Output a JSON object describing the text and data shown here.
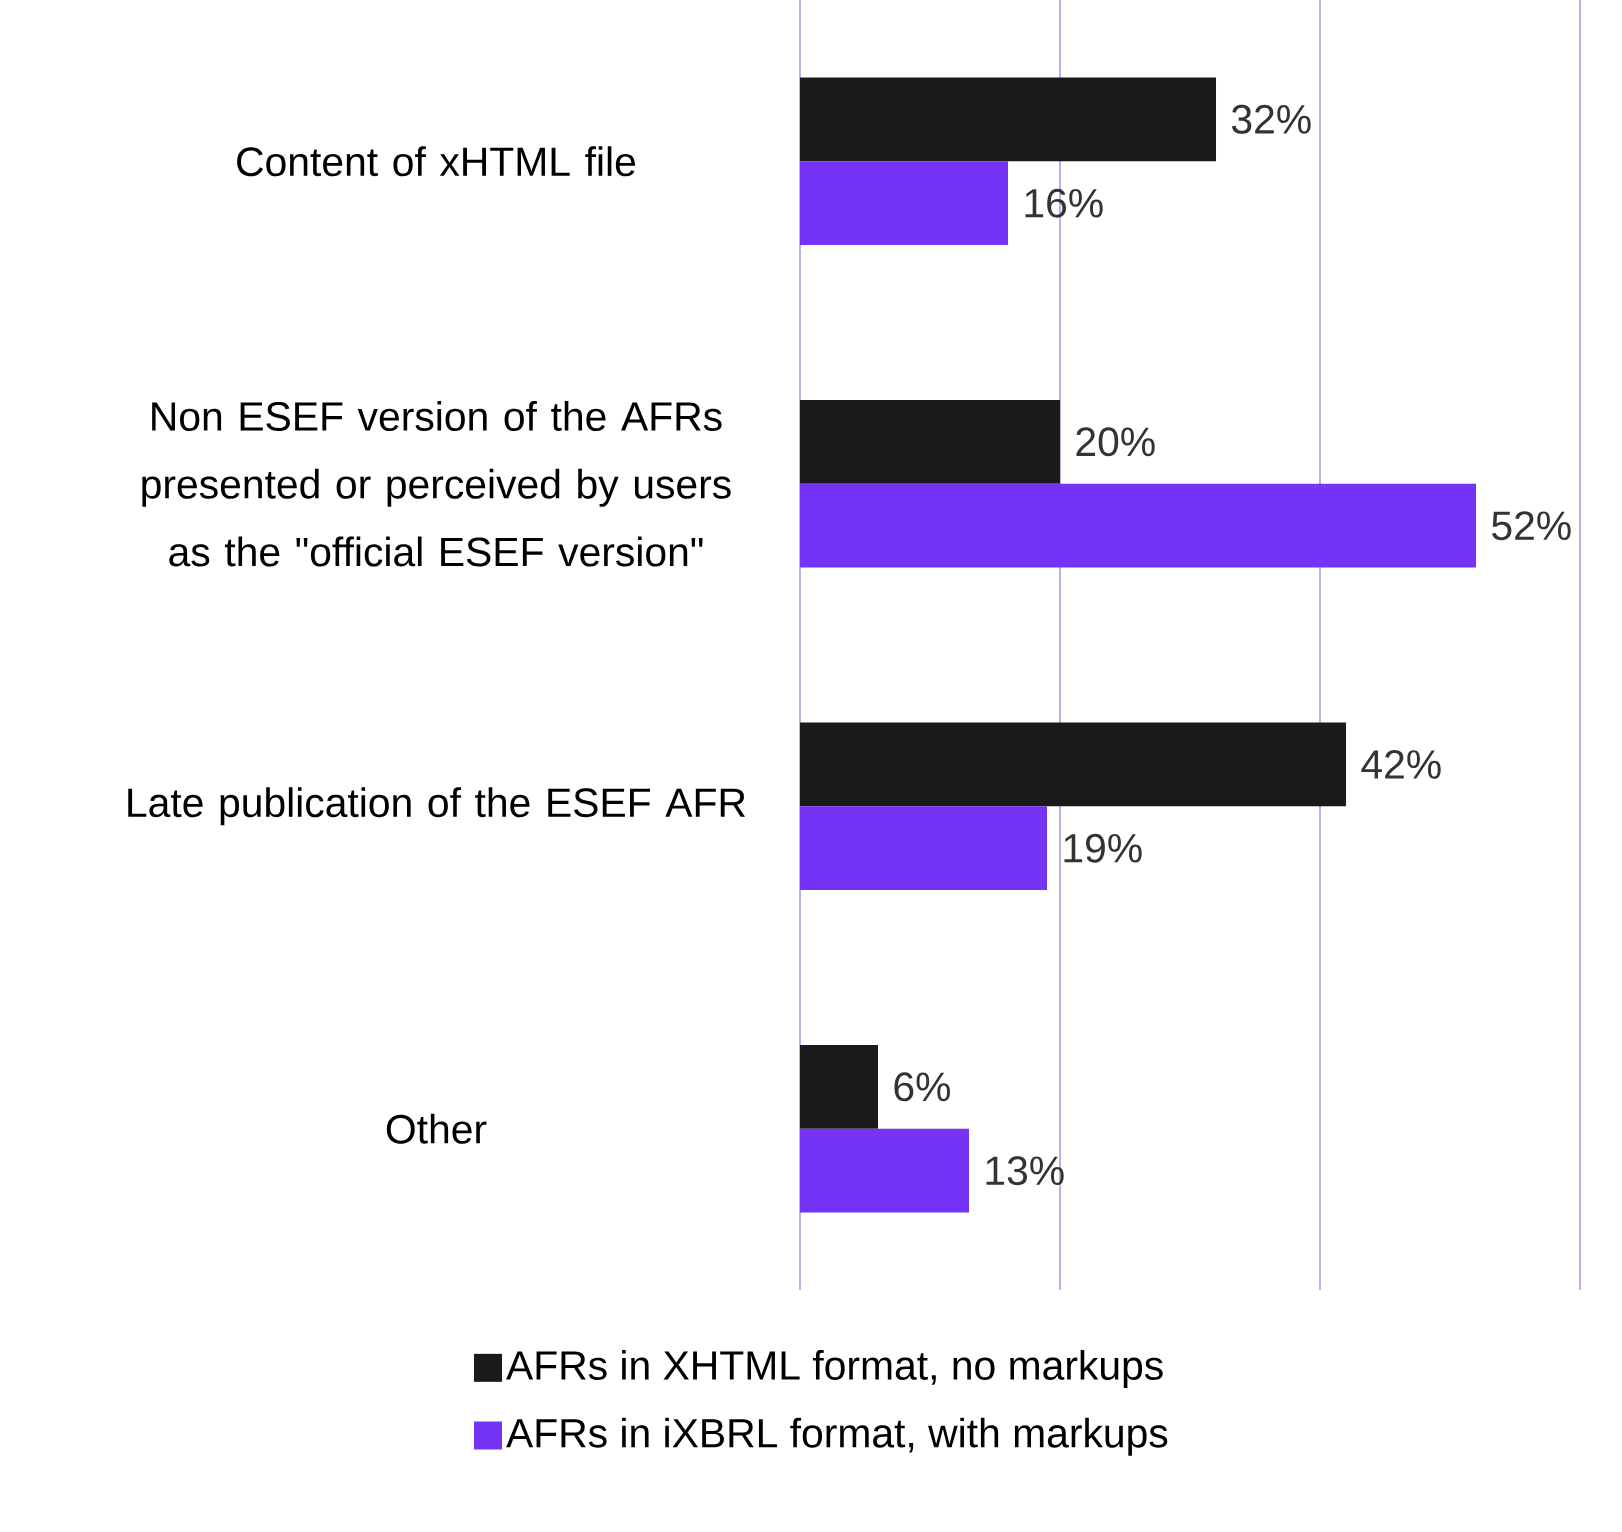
{
  "chart_data": {
    "type": "bar",
    "orientation": "horizontal",
    "categories": [
      "Content of xHTML file",
      "Non ESEF version of the AFRs presented or perceived by users as the \"official ESEF version\"",
      "Late publication of the ESEF AFR",
      "Other"
    ],
    "series": [
      {
        "name": "AFRs in XHTML format, no markups",
        "color": "#1a1a1a",
        "values": [
          32,
          20,
          42,
          6
        ],
        "value_labels": [
          "32%",
          "20%",
          "42%",
          "6%"
        ]
      },
      {
        "name": "AFRs in iXBRL format, with markups",
        "color": "#7433f5",
        "values": [
          16,
          52,
          19,
          13
        ],
        "value_labels": [
          "16%",
          "52%",
          "19%",
          "13%"
        ]
      }
    ],
    "xlim": [
      0,
      60
    ],
    "xticks": [
      {
        "value": 0,
        "label": null
      },
      {
        "value": 20,
        "label": null
      },
      {
        "value": 40,
        "label": null
      },
      {
        "value": 60,
        "label": null
      }
    ],
    "tick_labels": "y",
    "grid": "x",
    "legend": "bottom"
  }
}
